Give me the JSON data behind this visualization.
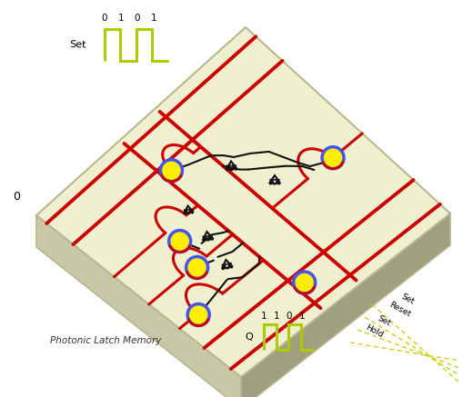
{
  "bg_color": "#ffffff",
  "chip_color": "#f0f0d0",
  "chip_edge_color": "#b8b890",
  "chip_side_left_color": "#c8c8a8",
  "chip_side_bot_color": "#a0a080",
  "red_line_color": "#cc0000",
  "black_line_color": "#111111",
  "yellow_fill": "#ffee00",
  "blue_ring": "#4455ee",
  "signal_color": "#aacc00",
  "title_text": "Photonic Latch Memory",
  "set_label": "Set",
  "q_label": "Q",
  "signal_labels_top": [
    "0",
    "1",
    "0",
    "1"
  ],
  "signal_labels_bot": [
    "1",
    "1",
    "0",
    "1"
  ],
  "hold_labels": [
    "Hold",
    "Set",
    "Reset",
    "Set"
  ]
}
